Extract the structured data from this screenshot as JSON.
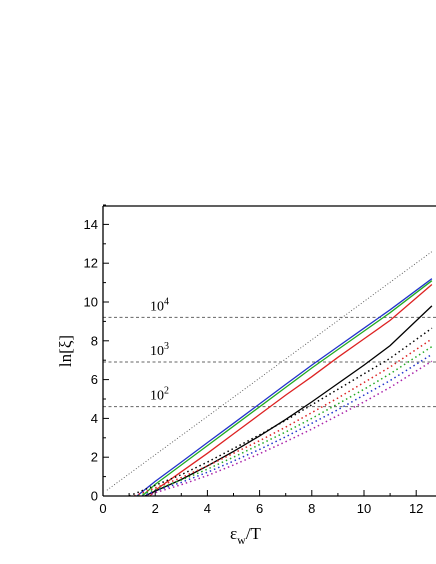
{
  "chart_data": {
    "type": "line",
    "xlabel_main": "ε",
    "xlabel_sub": "w",
    "xlabel_tail": "/T",
    "ylabel": "ln[ξ]",
    "xlim": [
      0,
      12.6
    ],
    "ylim": [
      0,
      15
    ],
    "x_ticks": [
      0,
      2,
      4,
      6,
      8,
      10,
      12
    ],
    "y_ticks": [
      0,
      2,
      4,
      6,
      8,
      10,
      12,
      14
    ],
    "x_tick_labels": [
      "0",
      "2",
      "4",
      "6",
      "8",
      "10",
      "12"
    ],
    "y_tick_labels": [
      "0",
      "2",
      "4",
      "6",
      "8",
      "10",
      "12",
      "14"
    ],
    "grid": false,
    "legend": "none",
    "reference_lines": [
      {
        "y": 9.21,
        "base": "10",
        "exp": "4",
        "label_x": 1.8
      },
      {
        "y": 6.91,
        "base": "10",
        "exp": "3",
        "label_x": 1.8
      },
      {
        "y": 4.61,
        "base": "10",
        "exp": "2",
        "label_x": 1.8
      }
    ],
    "series": [
      {
        "color": "#555555",
        "style": "dotted-fine",
        "x": [
          0.15,
          12.6
        ],
        "y": [
          0.3,
          12.6
        ]
      },
      {
        "color": "#2233cc",
        "style": "solid",
        "x": [
          1.3,
          2,
          3,
          4,
          5,
          6,
          7,
          8,
          9,
          10,
          11,
          12.6
        ],
        "y": [
          0,
          0.75,
          1.75,
          2.75,
          3.75,
          4.75,
          5.75,
          6.75,
          7.7,
          8.65,
          9.6,
          11.2
        ]
      },
      {
        "color": "#22aa22",
        "style": "solid",
        "x": [
          1.5,
          2,
          3,
          4,
          5,
          6,
          7,
          8,
          9,
          10,
          11,
          12.6
        ],
        "y": [
          0,
          0.6,
          1.6,
          2.6,
          3.6,
          4.6,
          5.6,
          6.6,
          7.55,
          8.5,
          9.45,
          11.1
        ]
      },
      {
        "color": "#dd2222",
        "style": "solid",
        "x": [
          1.8,
          2,
          3,
          4,
          5,
          6,
          7,
          8,
          9,
          10,
          11,
          12.6
        ],
        "y": [
          0,
          0.3,
          1.25,
          2.2,
          3.2,
          4.2,
          5.2,
          6.15,
          7.15,
          8.1,
          9.05,
          10.9
        ]
      },
      {
        "color": "#000000",
        "style": "solid",
        "x": [
          1.6,
          2,
          3,
          4,
          5,
          6,
          7,
          8,
          9,
          10,
          11,
          12.6
        ],
        "y": [
          0,
          0.25,
          0.85,
          1.55,
          2.3,
          3.1,
          3.95,
          4.85,
          5.8,
          6.75,
          7.75,
          9.8
        ]
      },
      {
        "color": "#000000",
        "style": "dotted",
        "x": [
          1.0,
          2,
          3,
          4,
          5,
          6,
          7,
          8,
          9,
          10,
          11,
          12.6
        ],
        "y": [
          0,
          0.55,
          1.1,
          1.75,
          2.45,
          3.15,
          3.9,
          4.7,
          5.5,
          6.3,
          7.1,
          8.65
        ]
      },
      {
        "color": "#dd2222",
        "style": "dotted",
        "x": [
          1.2,
          2,
          3,
          4,
          5,
          6,
          7,
          8,
          9,
          10,
          11,
          12.6
        ],
        "y": [
          0,
          0.42,
          0.95,
          1.55,
          2.2,
          2.85,
          3.55,
          4.3,
          5.05,
          5.85,
          6.65,
          8.1
        ]
      },
      {
        "color": "#22aa22",
        "style": "dotted",
        "x": [
          1.35,
          2,
          3,
          4,
          5,
          6,
          7,
          8,
          9,
          10,
          11,
          12.6
        ],
        "y": [
          0,
          0.33,
          0.82,
          1.38,
          2.0,
          2.65,
          3.3,
          4.0,
          4.75,
          5.5,
          6.3,
          7.7
        ]
      },
      {
        "color": "#2233cc",
        "style": "dotted",
        "x": [
          1.5,
          2,
          3,
          4,
          5,
          6,
          7,
          8,
          9,
          10,
          11,
          12.6
        ],
        "y": [
          0,
          0.25,
          0.7,
          1.22,
          1.8,
          2.4,
          3.05,
          3.75,
          4.45,
          5.2,
          5.95,
          7.3
        ]
      },
      {
        "color": "#aa22aa",
        "style": "dotted",
        "x": [
          1.7,
          2,
          3,
          4,
          5,
          6,
          7,
          8,
          9,
          10,
          11,
          12.6
        ],
        "y": [
          0,
          0.17,
          0.58,
          1.05,
          1.6,
          2.18,
          2.8,
          3.45,
          4.15,
          4.85,
          5.6,
          6.95
        ]
      }
    ]
  }
}
